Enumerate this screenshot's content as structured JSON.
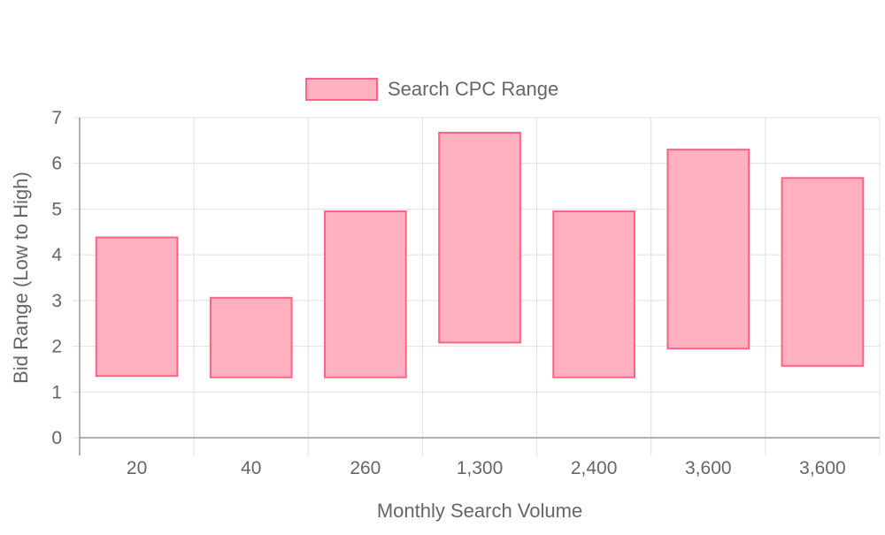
{
  "chart_data": {
    "type": "bar",
    "subtype": "floating-range",
    "title": "",
    "xlabel": "Monthly Search Volume",
    "ylabel": "Bid Range (Low to High)",
    "categories": [
      "20",
      "40",
      "260",
      "1,300",
      "2,400",
      "3,600",
      "3,600"
    ],
    "series": [
      {
        "name": "Search CPC Range",
        "ranges": [
          [
            1.35,
            4.38
          ],
          [
            1.32,
            3.06
          ],
          [
            1.32,
            4.95
          ],
          [
            2.08,
            6.67
          ],
          [
            1.32,
            4.95
          ],
          [
            1.95,
            6.3
          ],
          [
            1.57,
            5.68
          ]
        ],
        "fill_color": "#ffb0c1",
        "border_color": "#ff6384"
      }
    ],
    "ylim": [
      0,
      7
    ],
    "y_ticks": [
      "0",
      "1",
      "2",
      "3",
      "4",
      "5",
      "6",
      "7"
    ],
    "grid": true,
    "legend_position": "top-center",
    "colors": {
      "grid": "#e0e0e0",
      "axis": "#999999",
      "text": "#666666"
    }
  }
}
